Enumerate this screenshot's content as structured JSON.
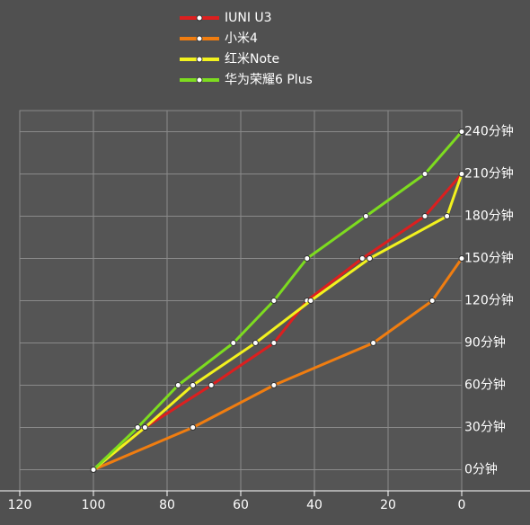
{
  "chart_data": {
    "type": "line",
    "xlim": [
      120,
      0
    ],
    "xticks": [
      120,
      100,
      80,
      60,
      40,
      20,
      0
    ],
    "ylim": [
      -15,
      255
    ],
    "yticks": [
      {
        "value": 0,
        "label": "0分钟"
      },
      {
        "value": 30,
        "label": "30分钟"
      },
      {
        "value": 60,
        "label": "60分钟"
      },
      {
        "value": 90,
        "label": "90分钟"
      },
      {
        "value": 120,
        "label": "120分钟"
      },
      {
        "value": 150,
        "label": "150分钟"
      },
      {
        "value": 180,
        "label": "180分钟"
      },
      {
        "value": 210,
        "label": "210分钟"
      },
      {
        "value": 240,
        "label": "240分钟"
      }
    ],
    "grid": true,
    "legend": "top",
    "series": [
      {
        "name": "IUNI U3",
        "color": "#dd1f1f",
        "x": [
          100,
          86,
          68,
          51,
          42,
          27,
          10,
          0
        ],
        "values": [
          0,
          30,
          60,
          90,
          120,
          150,
          180,
          210
        ]
      },
      {
        "name": "小米4",
        "color": "#f07d10",
        "x": [
          100,
          73,
          51,
          24,
          8,
          0
        ],
        "values": [
          0,
          30,
          60,
          90,
          120,
          150
        ]
      },
      {
        "name": "红米Note",
        "color": "#f2f21e",
        "x": [
          100,
          86,
          73,
          56,
          41,
          25,
          4,
          0
        ],
        "values": [
          0,
          30,
          60,
          90,
          120,
          150,
          180,
          210
        ]
      },
      {
        "name": "华为荣耀6 Plus",
        "color": "#7ddc1f",
        "x": [
          100,
          88,
          77,
          62,
          51,
          42,
          26,
          10,
          0
        ],
        "values": [
          0,
          30,
          60,
          90,
          120,
          150,
          180,
          210,
          240
        ]
      }
    ]
  }
}
